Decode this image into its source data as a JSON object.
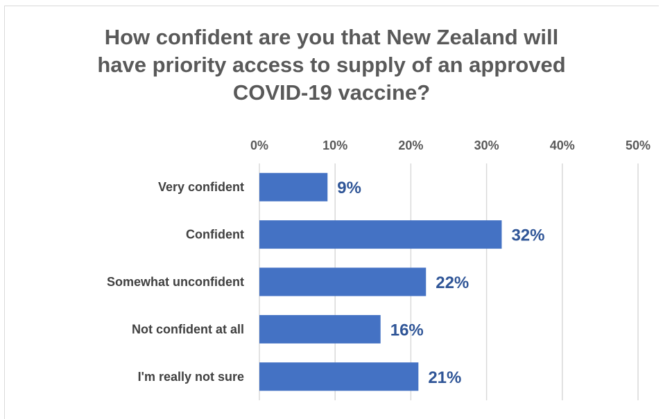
{
  "chart_data": {
    "type": "bar",
    "orientation": "horizontal",
    "title_lines": [
      "How confident are you that New Zealand will",
      "have priority access to supply of an approved",
      "COVID-19 vaccine?"
    ],
    "categories": [
      "Very confident",
      "Confident",
      "Somewhat unconfident",
      "Not confident at all",
      "I'm really not sure"
    ],
    "values": [
      9,
      32,
      22,
      16,
      21
    ],
    "data_labels": [
      "9%",
      "32%",
      "22%",
      "16%",
      "21%"
    ],
    "xlim": [
      0,
      50
    ],
    "x_ticks": [
      0,
      10,
      20,
      30,
      40,
      50
    ],
    "x_tick_labels": [
      "0%",
      "10%",
      "20%",
      "30%",
      "40%",
      "50%"
    ],
    "x_axis_position": "top",
    "grid": true,
    "legend": "none",
    "bar_color": "#4472c4",
    "label_color": "#2f5597",
    "gridline_color": "#d9d9d9"
  }
}
